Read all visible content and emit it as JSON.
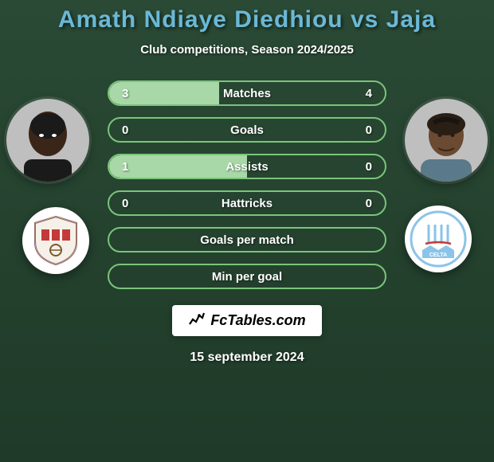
{
  "title": "Amath Ndiaye Diedhiou vs Jaja",
  "subtitle": "Club competitions, Season 2024/2025",
  "stats": [
    {
      "label": "Matches",
      "left_value": "3",
      "right_value": "4",
      "left_fill_pct": 40,
      "right_fill_pct": 0
    },
    {
      "label": "Goals",
      "left_value": "0",
      "right_value": "0",
      "left_fill_pct": 0,
      "right_fill_pct": 0
    },
    {
      "label": "Assists",
      "left_value": "1",
      "right_value": "0",
      "left_fill_pct": 50,
      "right_fill_pct": 0
    },
    {
      "label": "Hattricks",
      "left_value": "0",
      "right_value": "0",
      "left_fill_pct": 0,
      "right_fill_pct": 0
    },
    {
      "label": "Goals per match",
      "left_value": "",
      "right_value": "",
      "left_fill_pct": 0,
      "right_fill_pct": 0
    },
    {
      "label": "Min per goal",
      "left_value": "",
      "right_value": "",
      "left_fill_pct": 0,
      "right_fill_pct": 0
    }
  ],
  "styling": {
    "bar_border_color": "#7bc47b",
    "bar_fill_color": "#a8d8a8",
    "title_color": "#6bb8d6",
    "text_color": "#ffffff",
    "bg_gradient_start": "#2a4a35",
    "bg_gradient_end": "#1f3a28"
  },
  "player_left": {
    "name": "Amath Ndiaye Diedhiou"
  },
  "player_right": {
    "name": "Jaja"
  },
  "team_left": {
    "name": "Real Valladolid"
  },
  "team_right": {
    "name": "Celta Vigo"
  },
  "site_name": "FcTables.com",
  "date": "15 september 2024"
}
